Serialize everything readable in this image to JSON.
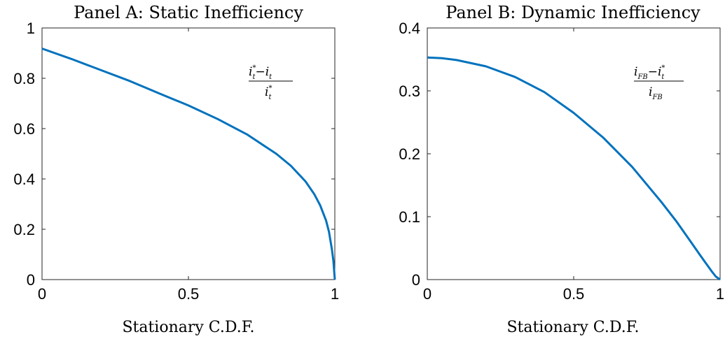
{
  "chart_data": [
    {
      "type": "line",
      "title": "Panel A: Static Inefficiency",
      "xlabel": "Stationary C.D.F.",
      "ylabel": "",
      "xlim": [
        0,
        1
      ],
      "ylim": [
        0,
        1
      ],
      "xticks": [
        "0",
        "0.5",
        "1"
      ],
      "yticks": [
        "0",
        "0.2",
        "0.4",
        "0.6",
        "0.8",
        "1"
      ],
      "annotation": {
        "num_a": "i",
        "num_a_sup": "*",
        "num_a_sub": "t",
        "minus": "−",
        "num_b": "i",
        "num_b_sub": "t",
        "den": "i",
        "den_sup": "*",
        "den_sub": "t"
      },
      "color": "#0072BD",
      "series": [
        {
          "x": [
            0,
            0.1,
            0.2,
            0.3,
            0.4,
            0.5,
            0.6,
            0.7,
            0.8,
            0.85,
            0.9,
            0.93,
            0.95,
            0.97,
            0.98,
            0.99,
            0.995,
            1.0
          ],
          "y": [
            0.918,
            0.877,
            0.833,
            0.789,
            0.74,
            0.692,
            0.638,
            0.577,
            0.5,
            0.452,
            0.39,
            0.339,
            0.295,
            0.235,
            0.19,
            0.12,
            0.075,
            0.0
          ]
        }
      ]
    },
    {
      "type": "line",
      "title": "Panel B: Dynamic Inefficiency",
      "xlabel": "Stationary C.D.F.",
      "ylabel": "",
      "xlim": [
        0,
        1
      ],
      "ylim": [
        0,
        0.4
      ],
      "xticks": [
        "0",
        "0.5",
        "1"
      ],
      "yticks": [
        "0",
        "0.1",
        "0.2",
        "0.3",
        "0.4"
      ],
      "annotation": {
        "num_a": "i",
        "num_a_sub": "FB",
        "minus": "−",
        "num_b": "i",
        "num_b_sup": "*",
        "num_b_sub": "t",
        "den": "i",
        "den_sub": "FB"
      },
      "color": "#0072BD",
      "series": [
        {
          "x": [
            0,
            0.05,
            0.1,
            0.2,
            0.3,
            0.4,
            0.5,
            0.6,
            0.7,
            0.8,
            0.85,
            0.9,
            0.93,
            0.95,
            0.97,
            0.985,
            1.0
          ],
          "y": [
            0.353,
            0.352,
            0.349,
            0.339,
            0.322,
            0.298,
            0.265,
            0.226,
            0.179,
            0.123,
            0.093,
            0.06,
            0.04,
            0.027,
            0.014,
            0.005,
            0.0
          ]
        }
      ]
    }
  ]
}
